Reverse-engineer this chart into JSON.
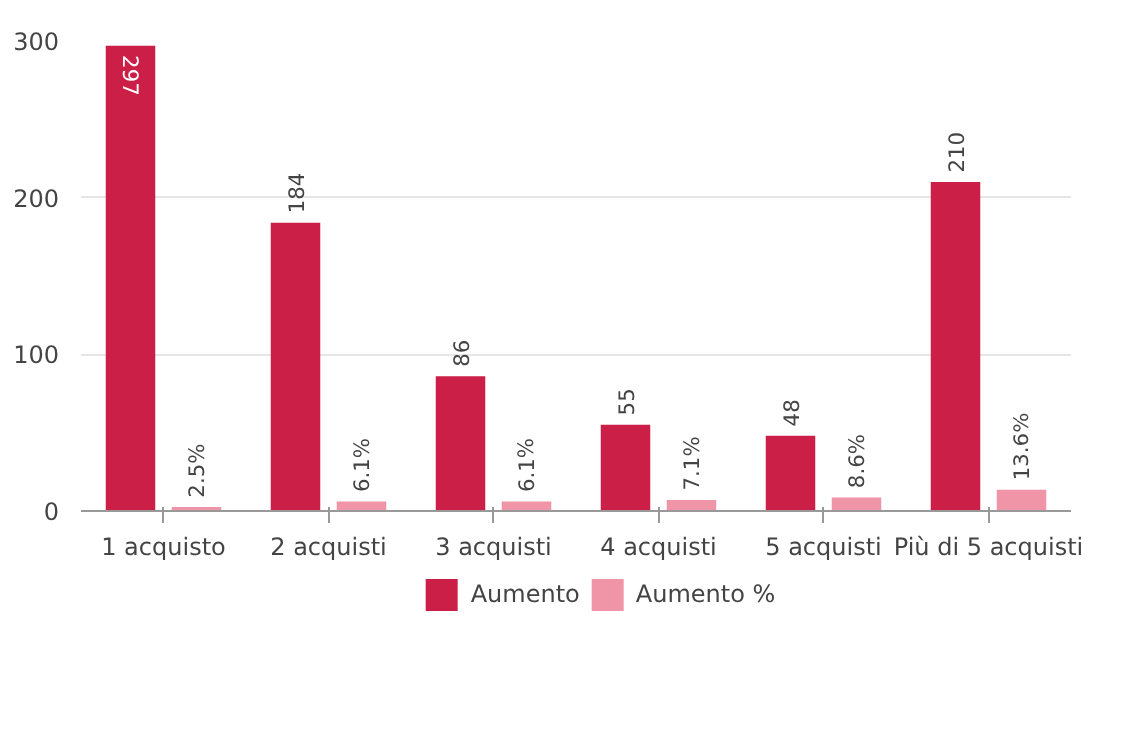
{
  "chart_data": {
    "type": "bar",
    "categories": [
      "1 acquisto",
      "2 acquisti",
      "3 acquisti",
      "4 acquisti",
      "5 acquisti",
      "Più di 5 acquisti"
    ],
    "series": [
      {
        "name": "Aumento",
        "color": "#cc1f48",
        "values": [
          297,
          184,
          86,
          55,
          48,
          210
        ],
        "value_labels": [
          "297",
          "184",
          "86",
          "55",
          "48",
          "210"
        ]
      },
      {
        "name": "Aumento %",
        "color": "#f095a8",
        "values": [
          2.5,
          6.1,
          6.1,
          7.1,
          8.6,
          13.6
        ],
        "value_labels": [
          "2.5%",
          "6.1%",
          "6.1%",
          "7.1%",
          "8.6%",
          "13.6%"
        ]
      }
    ],
    "ylim": [
      0,
      300
    ],
    "yticks": [
      0,
      100,
      200,
      300
    ],
    "grid": "y",
    "legend": "bottom"
  }
}
